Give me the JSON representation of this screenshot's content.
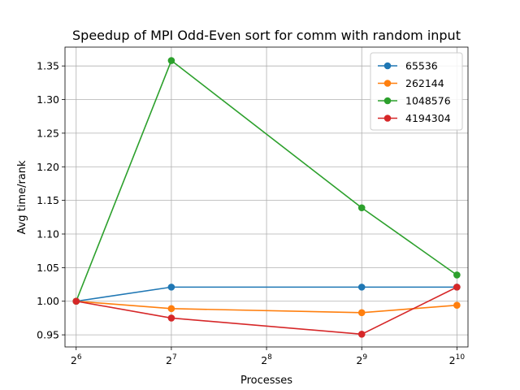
{
  "chart_data": {
    "type": "line",
    "title": "Speedup of MPI Odd-Even sort for comm with random input",
    "xlabel": "Processes",
    "ylabel": "Avg time/rank",
    "x_scale": "log2",
    "x_ticks": [
      {
        "value": 64,
        "base": "2",
        "exp": "6"
      },
      {
        "value": 128,
        "base": "2",
        "exp": "7"
      },
      {
        "value": 256,
        "base": "2",
        "exp": "8"
      },
      {
        "value": 512,
        "base": "2",
        "exp": "9"
      },
      {
        "value": 1024,
        "base": "2",
        "exp": "10"
      }
    ],
    "xlim": [
      59,
      1110
    ],
    "ylim": [
      0.932,
      1.378
    ],
    "y_ticks": [
      0.95,
      1.0,
      1.05,
      1.1,
      1.15,
      1.2,
      1.25,
      1.3,
      1.35
    ],
    "y_tick_labels": [
      "0.95",
      "1.00",
      "1.05",
      "1.10",
      "1.15",
      "1.20",
      "1.25",
      "1.30",
      "1.35"
    ],
    "grid": true,
    "legend_position": "top-right",
    "x": [
      64,
      128,
      512,
      1024
    ],
    "series": [
      {
        "name": "65536",
        "color": "#1f77b4",
        "values": [
          1.0,
          1.021,
          1.021,
          1.021
        ]
      },
      {
        "name": "262144",
        "color": "#ff7f0e",
        "values": [
          1.0,
          0.989,
          0.983,
          0.994
        ]
      },
      {
        "name": "1048576",
        "color": "#2ca02c",
        "values": [
          1.0,
          1.358,
          1.139,
          1.039
        ]
      },
      {
        "name": "4194304",
        "color": "#d62728",
        "values": [
          1.0,
          0.975,
          0.951,
          1.021
        ]
      }
    ]
  }
}
